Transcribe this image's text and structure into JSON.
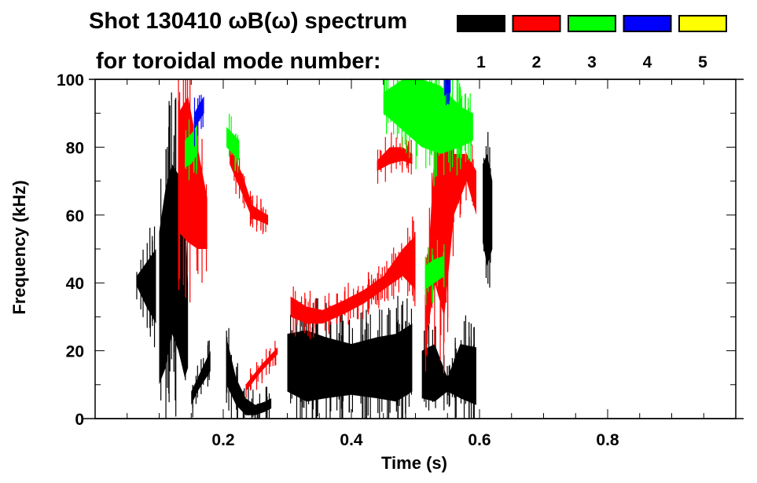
{
  "chart_data": {
    "type": "heatmap",
    "title": "Shot 130410 ωB(ω) spectrum",
    "subtitle": "for toroidal mode number:",
    "xlabel": "Time (s)",
    "ylabel": "Frequency (kHz)",
    "xlim": [
      0,
      1.0
    ],
    "ylim": [
      0,
      100
    ],
    "xticks": [
      0.2,
      0.4,
      0.6,
      0.8
    ],
    "xtick_labels": [
      "0.2",
      "0.4",
      "0.6",
      "0.8"
    ],
    "yticks": [
      0,
      20,
      40,
      60,
      80,
      100
    ],
    "ytick_labels": [
      "0",
      "20",
      "40",
      "60",
      "80",
      "100"
    ],
    "legend": [
      {
        "label": "1",
        "color": "#000000"
      },
      {
        "label": "2",
        "color": "#ff0000"
      },
      {
        "label": "3",
        "color": "#00ff00"
      },
      {
        "label": "4",
        "color": "#0000ff"
      },
      {
        "label": "5",
        "color": "#ffff00"
      }
    ],
    "legend_placement": "top-right",
    "features": [
      {
        "mode": "1",
        "t": [
          0.065,
          0.08,
          0.095
        ],
        "f_lo": [
          39,
          33,
          28
        ],
        "f_hi": [
          42,
          46,
          50
        ]
      },
      {
        "mode": "1",
        "t": [
          0.1,
          0.11,
          0.12,
          0.13,
          0.14,
          0.145
        ],
        "f_lo": [
          10,
          15,
          25,
          20,
          12,
          15
        ],
        "f_hi": [
          55,
          68,
          75,
          72,
          65,
          40
        ]
      },
      {
        "mode": "1",
        "t": [
          0.15,
          0.16,
          0.17,
          0.18
        ],
        "f_lo": [
          4,
          8,
          11,
          14
        ],
        "f_hi": [
          8,
          12,
          16,
          20
        ]
      },
      {
        "mode": "1",
        "t": [
          0.205,
          0.22,
          0.235,
          0.25,
          0.265,
          0.275
        ],
        "f_lo": [
          10,
          4,
          1,
          1,
          2,
          3
        ],
        "f_hi": [
          24,
          12,
          6,
          4,
          5,
          6
        ]
      },
      {
        "mode": "1",
        "t": [
          0.3,
          0.33,
          0.36,
          0.4,
          0.44,
          0.47,
          0.495
        ],
        "f_lo": [
          8,
          5,
          6,
          7,
          6,
          5,
          8
        ],
        "f_hi": [
          25,
          26,
          24,
          22,
          24,
          25,
          28
        ]
      },
      {
        "mode": "1",
        "t": [
          0.51,
          0.53,
          0.55,
          0.57,
          0.595
        ],
        "f_lo": [
          6,
          5,
          8,
          6,
          4
        ],
        "f_hi": [
          20,
          22,
          12,
          22,
          21
        ]
      },
      {
        "mode": "1",
        "t": [
          0.605,
          0.612,
          0.62
        ],
        "f_lo": [
          52,
          45,
          50
        ],
        "f_hi": [
          75,
          78,
          70
        ]
      },
      {
        "mode": "2",
        "t": [
          0.13,
          0.145,
          0.16,
          0.175
        ],
        "f_lo": [
          55,
          52,
          50,
          50
        ],
        "f_hi": [
          90,
          95,
          80,
          65
        ]
      },
      {
        "mode": "2",
        "t": [
          0.21,
          0.23,
          0.245,
          0.26,
          0.27
        ],
        "f_lo": [
          75,
          66,
          59,
          58,
          57
        ],
        "f_hi": [
          80,
          72,
          63,
          61,
          60
        ]
      },
      {
        "mode": "2",
        "t": [
          0.305,
          0.33,
          0.355,
          0.39,
          0.42,
          0.45,
          0.48,
          0.5
        ],
        "f_lo": [
          30,
          28,
          28,
          31,
          34,
          38,
          42,
          38
        ],
        "f_hi": [
          36,
          33,
          32,
          35,
          38,
          42,
          50,
          54
        ]
      },
      {
        "mode": "2",
        "t": [
          0.44,
          0.46,
          0.48,
          0.495
        ],
        "f_lo": [
          73,
          75,
          76,
          75
        ],
        "f_hi": [
          76,
          80,
          80,
          78
        ]
      },
      {
        "mode": "2",
        "t": [
          0.515,
          0.53,
          0.545,
          0.56,
          0.58,
          0.595
        ],
        "f_lo": [
          20,
          40,
          30,
          60,
          70,
          60
        ],
        "f_hi": [
          30,
          80,
          85,
          78,
          78,
          73
        ]
      },
      {
        "mode": "2",
        "t": [
          0.235,
          0.26,
          0.285
        ],
        "f_lo": [
          8,
          14,
          19
        ],
        "f_hi": [
          10,
          16,
          21
        ]
      },
      {
        "mode": "3",
        "t": [
          0.45,
          0.48,
          0.51,
          0.54,
          0.57,
          0.59
        ],
        "f_lo": [
          90,
          85,
          80,
          78,
          80,
          82
        ],
        "f_hi": [
          96,
          100,
          100,
          98,
          92,
          90
        ]
      },
      {
        "mode": "3",
        "t": [
          0.14,
          0.15,
          0.16
        ],
        "f_lo": [
          74,
          75,
          78
        ],
        "f_hi": [
          82,
          84,
          86
        ]
      },
      {
        "mode": "3",
        "t": [
          0.205,
          0.215,
          0.225
        ],
        "f_lo": [
          80,
          78,
          76
        ],
        "f_hi": [
          86,
          84,
          82
        ]
      },
      {
        "mode": "3",
        "t": [
          0.515,
          0.53,
          0.545
        ],
        "f_lo": [
          38,
          40,
          42
        ],
        "f_hi": [
          45,
          47,
          48
        ]
      },
      {
        "mode": "4",
        "t": [
          0.155,
          0.163,
          0.17
        ],
        "f_lo": [
          85,
          88,
          90
        ],
        "f_hi": [
          90,
          93,
          95
        ]
      },
      {
        "mode": "4",
        "t": [
          0.545,
          0.55,
          0.555
        ],
        "f_lo": [
          95,
          96,
          96
        ],
        "f_hi": [
          100,
          100,
          100
        ]
      }
    ]
  }
}
